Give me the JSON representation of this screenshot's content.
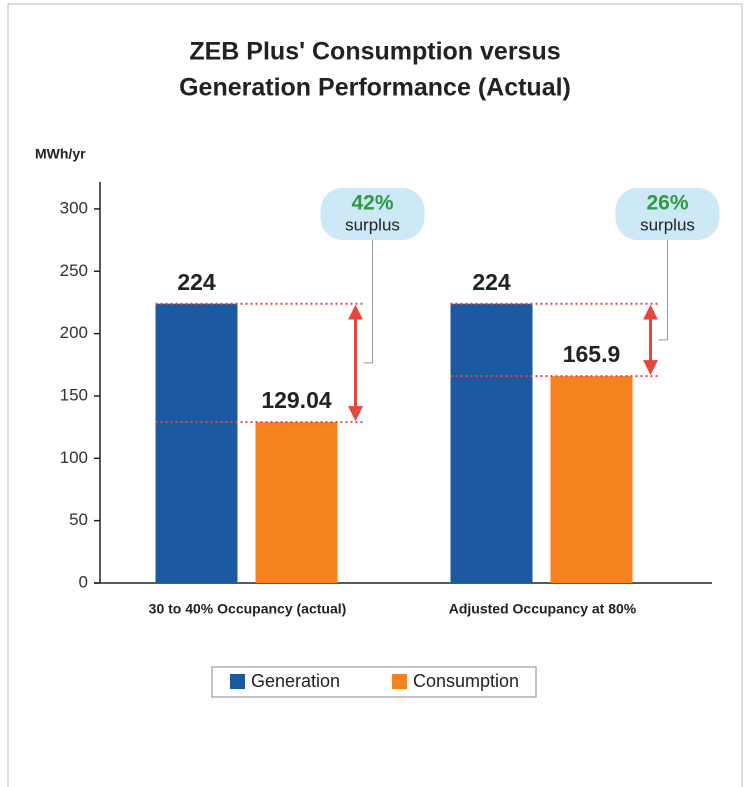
{
  "chart_data": {
    "type": "bar",
    "title": [
      "ZEB Plus' Consumption versus",
      "Generation Performance (Actual)"
    ],
    "y_label": "MWh/yr",
    "categories": [
      "30 to 40% Occupancy (actual)",
      "Adjusted Occupancy at 80%"
    ],
    "series": [
      {
        "name": "Generation",
        "color": "#1b5aa2",
        "values": [
          224,
          224
        ]
      },
      {
        "name": "Consumption",
        "color": "#f5821f",
        "values": [
          129.04,
          165.9
        ]
      }
    ],
    "ylim": [
      0,
      320
    ],
    "yticks": [
      0,
      50,
      100,
      150,
      200,
      250,
      300
    ],
    "annotations": [
      {
        "label": "42%",
        "text": "surplus"
      },
      {
        "label": "26%",
        "text": "surplus"
      }
    ]
  }
}
